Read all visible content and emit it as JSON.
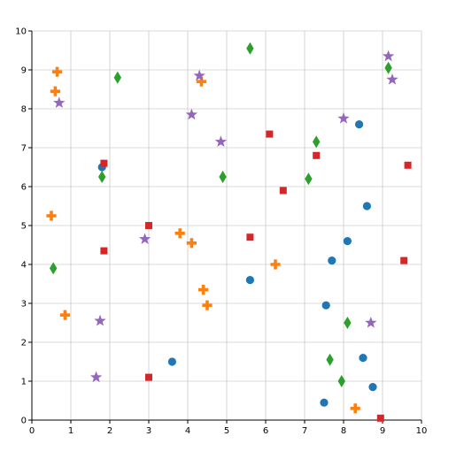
{
  "chart_data": {
    "type": "scatter",
    "title": "",
    "xlabel": "",
    "ylabel": "",
    "xlim": [
      0,
      10
    ],
    "ylim": [
      0,
      10
    ],
    "grid": true,
    "xticks": [
      "0",
      "1",
      "2",
      "3",
      "4",
      "5",
      "6",
      "7",
      "8",
      "9",
      "10"
    ],
    "yticks": [
      "0",
      "1",
      "2",
      "3",
      "4",
      "5",
      "6",
      "7",
      "8",
      "9",
      "10"
    ],
    "series": [
      {
        "marker": "circle",
        "color": "#1f77b4",
        "points": [
          [
            1.8,
            6.5
          ],
          [
            3.6,
            1.5
          ],
          [
            5.6,
            3.6
          ],
          [
            7.5,
            0.45
          ],
          [
            7.55,
            2.95
          ],
          [
            7.7,
            4.1
          ],
          [
            8.1,
            4.6
          ],
          [
            8.4,
            7.6
          ],
          [
            8.5,
            1.6
          ],
          [
            8.6,
            5.5
          ],
          [
            8.75,
            0.85
          ]
        ]
      },
      {
        "marker": "plus",
        "color": "#ff7f0e",
        "points": [
          [
            0.5,
            5.25
          ],
          [
            0.6,
            8.45
          ],
          [
            0.65,
            8.95
          ],
          [
            0.85,
            2.7
          ],
          [
            3.8,
            4.8
          ],
          [
            4.1,
            4.55
          ],
          [
            4.35,
            8.7
          ],
          [
            4.4,
            3.35
          ],
          [
            4.5,
            2.95
          ],
          [
            6.25,
            4.0
          ],
          [
            8.3,
            0.3
          ]
        ]
      },
      {
        "marker": "diamond",
        "color": "#2ca02c",
        "points": [
          [
            0.55,
            3.9
          ],
          [
            1.8,
            6.25
          ],
          [
            2.2,
            8.8
          ],
          [
            4.9,
            6.25
          ],
          [
            5.6,
            9.55
          ],
          [
            7.1,
            6.2
          ],
          [
            7.3,
            7.15
          ],
          [
            7.65,
            1.55
          ],
          [
            7.95,
            1.0
          ],
          [
            8.1,
            2.5
          ],
          [
            9.15,
            9.05
          ]
        ]
      },
      {
        "marker": "square",
        "color": "#d62728",
        "points": [
          [
            1.85,
            4.35
          ],
          [
            1.85,
            6.6
          ],
          [
            3.0,
            1.1
          ],
          [
            3.0,
            5.0
          ],
          [
            5.6,
            4.7
          ],
          [
            6.1,
            7.35
          ],
          [
            6.45,
            5.9
          ],
          [
            7.3,
            6.8
          ],
          [
            8.95,
            0.05
          ],
          [
            9.55,
            4.1
          ],
          [
            9.65,
            6.55
          ]
        ]
      },
      {
        "marker": "star",
        "color": "#9467bd",
        "points": [
          [
            0.7,
            8.15
          ],
          [
            1.65,
            1.1
          ],
          [
            1.75,
            2.55
          ],
          [
            2.9,
            4.65
          ],
          [
            4.1,
            7.85
          ],
          [
            4.3,
            8.85
          ],
          [
            4.85,
            7.15
          ],
          [
            8.0,
            7.75
          ],
          [
            8.7,
            2.5
          ],
          [
            9.15,
            9.35
          ],
          [
            9.25,
            8.75
          ]
        ]
      }
    ]
  }
}
